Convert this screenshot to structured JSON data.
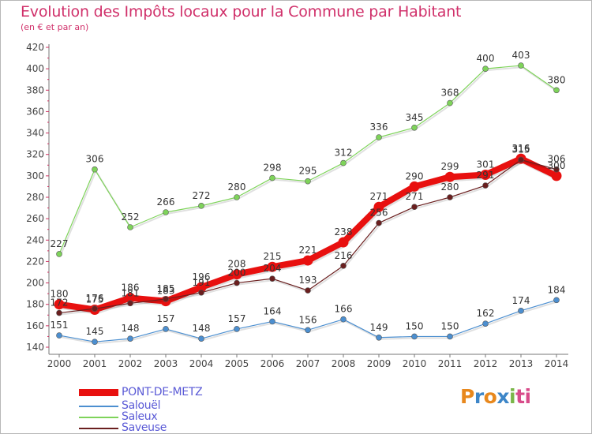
{
  "header": {
    "title": "Evolution des Impôts locaux pour la Commune par Habitant",
    "subtitle": "(en € et par an)"
  },
  "logo": {
    "letters": [
      "P",
      "r",
      "o",
      "x",
      "i",
      "t",
      "i"
    ]
  },
  "colors": {
    "title": "#d0306a",
    "axis": "#777777",
    "tick_text": "#444444",
    "label_text": "#333333",
    "legend_text": "#5a5ad6"
  },
  "chart_data": {
    "type": "line",
    "title": "Evolution des Impôts locaux pour la Commune par Habitant",
    "subtitle": "(en € et par an)",
    "x": [
      2000,
      2001,
      2002,
      2003,
      2004,
      2005,
      2006,
      2007,
      2008,
      2009,
      2010,
      2011,
      2012,
      2013,
      2014
    ],
    "ylim": [
      140,
      420
    ],
    "yticks": [
      140,
      160,
      180,
      200,
      220,
      240,
      260,
      280,
      300,
      320,
      340,
      360,
      380,
      400,
      420
    ],
    "grid": false,
    "legend_position": "bottom-left",
    "series": [
      {
        "name": "PONT-DE-METZ",
        "color": "#e8100f",
        "values": [
          180,
          175,
          186,
          183,
          196,
          208,
          215,
          221,
          238,
          271,
          290,
          299,
          301,
          316,
          300
        ]
      },
      {
        "name": "Salouël",
        "color": "#4c8fd0",
        "values": [
          151,
          145,
          148,
          157,
          148,
          157,
          164,
          156,
          166,
          149,
          150,
          150,
          162,
          174,
          184
        ]
      },
      {
        "name": "Saleux",
        "color": "#7ed35a",
        "values": [
          227,
          306,
          252,
          266,
          272,
          280,
          298,
          295,
          312,
          336,
          345,
          368,
          400,
          403,
          380
        ]
      },
      {
        "name": "Saveuse",
        "color": "#6a1f1f",
        "values": [
          172,
          176,
          181,
          185,
          191,
          200,
          204,
          193,
          216,
          256,
          271,
          280,
          291,
          315,
          306
        ]
      }
    ]
  }
}
